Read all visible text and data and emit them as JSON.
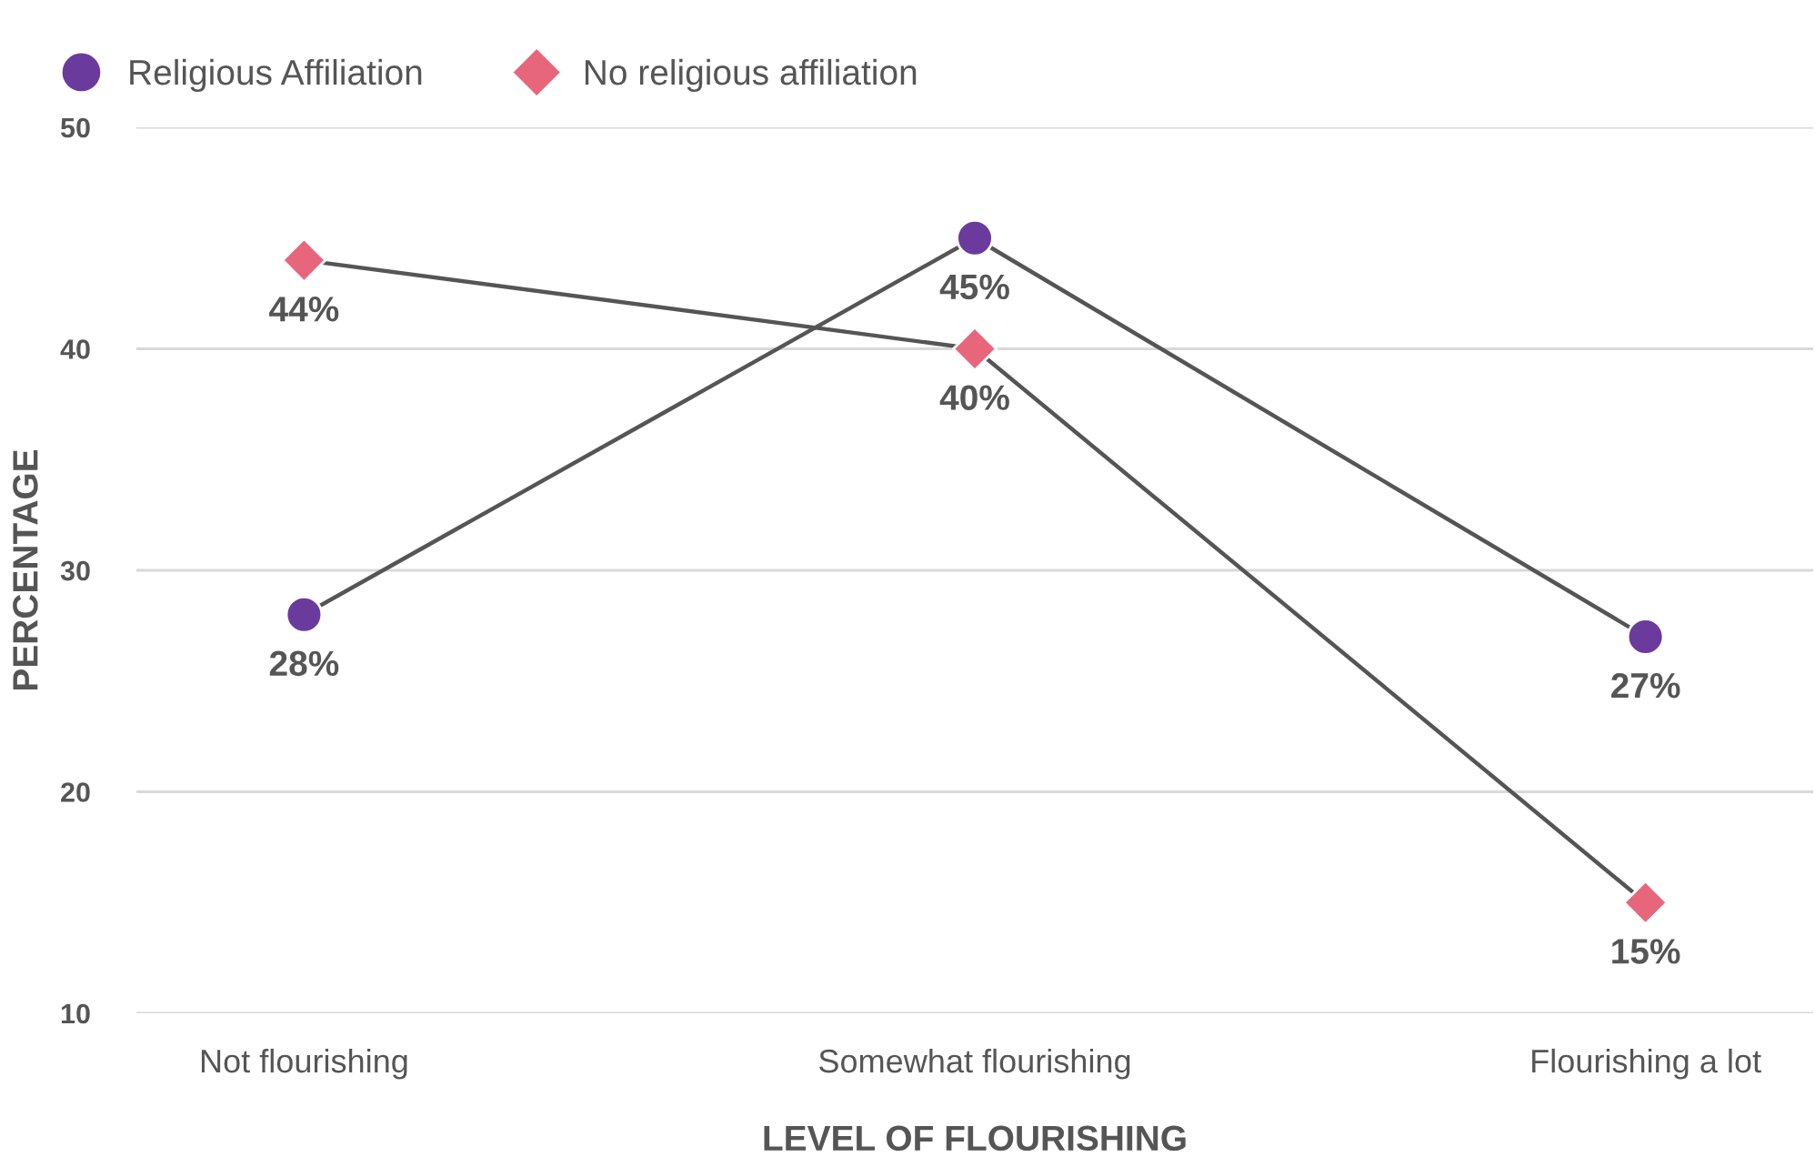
{
  "chart_data": {
    "type": "line",
    "xlabel": "LEVEL OF FLOURISHING",
    "ylabel": "PERCENTAGE",
    "categories": [
      "Not flourishing",
      "Somewhat flourishing",
      "Flourishing a lot"
    ],
    "series": [
      {
        "name": "Religious Affiliation",
        "color": "#6a3b9c",
        "marker": "circle",
        "values": [
          28,
          45,
          27
        ],
        "value_labels": [
          "28%",
          "45%",
          "27%"
        ]
      },
      {
        "name": "No religious affiliation",
        "color": "#e8667c",
        "marker": "diamond",
        "values": [
          44,
          40,
          15
        ],
        "value_labels": [
          "44%",
          "40%",
          "15%"
        ]
      }
    ],
    "ylim": [
      10,
      50
    ],
    "yticks": [
      10,
      20,
      30,
      40,
      50
    ],
    "grid": "y",
    "legend": "top left",
    "line_style": "solid"
  }
}
